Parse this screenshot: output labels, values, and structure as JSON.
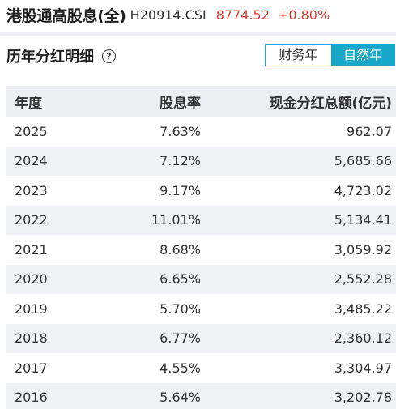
{
  "header": {
    "index_name": "港股通高股息(全)",
    "index_code": "H20914.CSI",
    "price": "8774.52",
    "change": "+0.80%"
  },
  "section": {
    "title": "历年分红明细",
    "help_icon": "question-circle-icon",
    "toggle": {
      "fiscal_label": "财务年",
      "natural_label": "自然年",
      "selected": "自然年"
    }
  },
  "colors": {
    "accent": "#17a8c9",
    "up": "#e03c31",
    "row_stripe": "#f1f2f5",
    "header_bg": "#eceef2"
  },
  "table": {
    "columns": [
      "年度",
      "股息率",
      "现金分红总额(亿元)"
    ],
    "rows": [
      {
        "year": "2025",
        "rate": "7.63%",
        "amount": "962.07"
      },
      {
        "year": "2024",
        "rate": "7.12%",
        "amount": "5,685.66"
      },
      {
        "year": "2023",
        "rate": "9.17%",
        "amount": "4,723.02"
      },
      {
        "year": "2022",
        "rate": "11.01%",
        "amount": "5,134.41"
      },
      {
        "year": "2021",
        "rate": "8.68%",
        "amount": "3,059.92"
      },
      {
        "year": "2020",
        "rate": "6.65%",
        "amount": "2,552.28"
      },
      {
        "year": "2019",
        "rate": "5.70%",
        "amount": "3,485.22"
      },
      {
        "year": "2018",
        "rate": "6.77%",
        "amount": "2,360.12"
      },
      {
        "year": "2017",
        "rate": "4.55%",
        "amount": "3,304.97"
      },
      {
        "year": "2016",
        "rate": "5.64%",
        "amount": "3,202.78"
      }
    ]
  }
}
